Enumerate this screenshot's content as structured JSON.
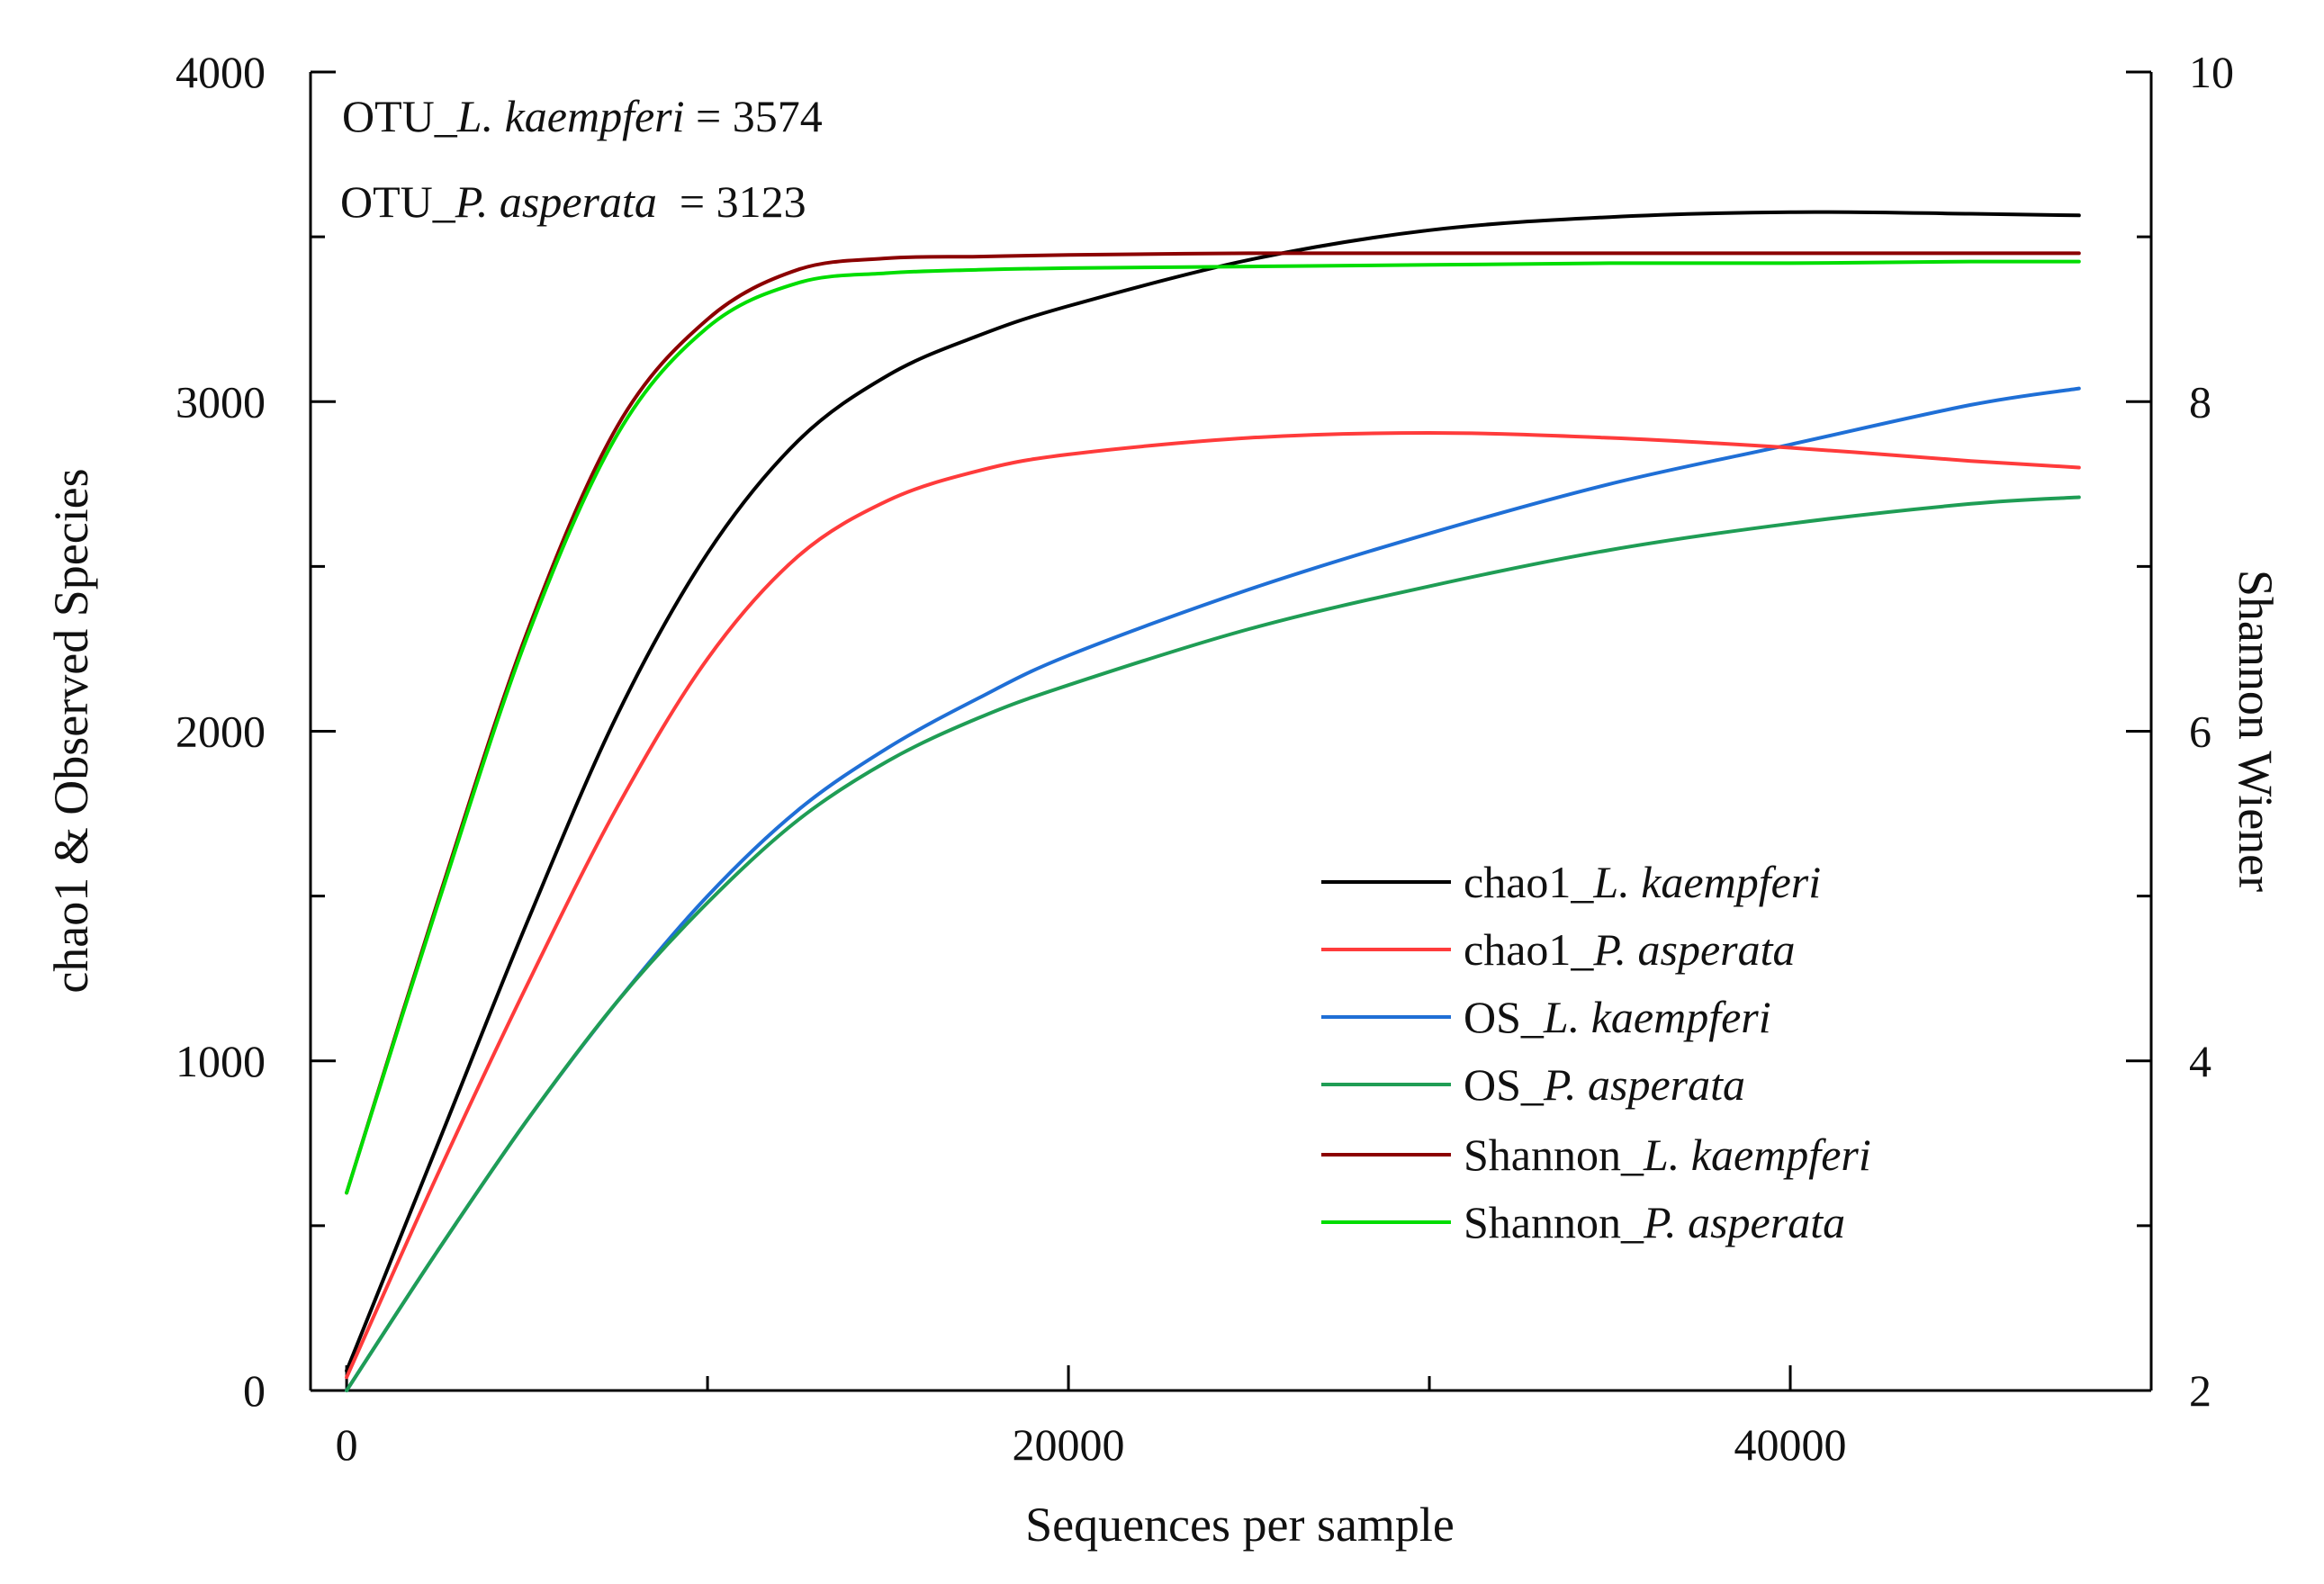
{
  "chart_data": {
    "type": "line",
    "title": "",
    "xlabel": "Sequences per sample",
    "ylabel": "chao1 & Observed Species",
    "y2label": "Shannon Wiener",
    "xlim": [
      -1000,
      50000
    ],
    "ylim": [
      0,
      4000
    ],
    "y2lim": [
      2,
      10
    ],
    "xticks": [
      0,
      20000,
      40000
    ],
    "xticks_minor": [
      10000,
      30000
    ],
    "yticks": [
      0,
      1000,
      2000,
      3000,
      4000
    ],
    "y2ticks": [
      2,
      4,
      6,
      8,
      10
    ],
    "grid": false,
    "legend_position": "bottom-right",
    "annotations": [
      {
        "prefix": "OTU_",
        "species": "L. kaempferi",
        "suffix": " = 3574"
      },
      {
        "prefix": "OTU_",
        "species": "P. asperata",
        "suffix": "  = 3123"
      }
    ],
    "x": [
      0,
      2500,
      5000,
      7500,
      10000,
      12500,
      15000,
      17500,
      20000,
      25000,
      30000,
      35000,
      40000,
      45000,
      48000
    ],
    "series": [
      {
        "name": "chao1_L. kaempferi",
        "prefix": "chao1_",
        "species": "L. kaempferi",
        "color": "#000000",
        "axis": "left",
        "values": [
          60,
          740,
          1420,
          2050,
          2540,
          2880,
          3080,
          3200,
          3290,
          3430,
          3520,
          3560,
          3575,
          3570,
          3565
        ]
      },
      {
        "name": "chao1_P. asperata",
        "prefix": "chao1_",
        "species": "P. asperata",
        "color": "#ff3b3b",
        "axis": "left",
        "values": [
          40,
          650,
          1230,
          1770,
          2220,
          2530,
          2700,
          2790,
          2840,
          2890,
          2905,
          2890,
          2860,
          2820,
          2800
        ]
      },
      {
        "name": "OS_L. kaempferi",
        "prefix": "OS_",
        "species": "L. kaempferi",
        "color": "#1f6fd6",
        "axis": "left",
        "values": [
          0,
          420,
          820,
          1180,
          1500,
          1760,
          1950,
          2100,
          2230,
          2430,
          2600,
          2750,
          2870,
          2990,
          3040
        ]
      },
      {
        "name": "OS_P. asperata",
        "prefix": "OS_",
        "species": "P. asperata",
        "color": "#1f9d55",
        "axis": "left",
        "values": [
          0,
          420,
          820,
          1180,
          1480,
          1730,
          1910,
          2040,
          2140,
          2310,
          2440,
          2550,
          2630,
          2690,
          2710
        ]
      },
      {
        "name": "Shannon_L. kaempferi",
        "prefix": "Shannon_",
        "species": "L. kaempferi",
        "color": "#8b0000",
        "axis": "right",
        "values": [
          3.2,
          4.95,
          6.6,
          7.85,
          8.5,
          8.8,
          8.87,
          8.88,
          8.89,
          8.9,
          8.9,
          8.9,
          8.9,
          8.9,
          8.9
        ]
      },
      {
        "name": "Shannon_P. asperata",
        "prefix": "Shannon_",
        "species": "P. asperata",
        "color": "#00dd00",
        "axis": "right",
        "values": [
          3.2,
          4.93,
          6.57,
          7.8,
          8.45,
          8.72,
          8.78,
          8.8,
          8.81,
          8.82,
          8.83,
          8.84,
          8.84,
          8.85,
          8.85
        ]
      }
    ]
  }
}
